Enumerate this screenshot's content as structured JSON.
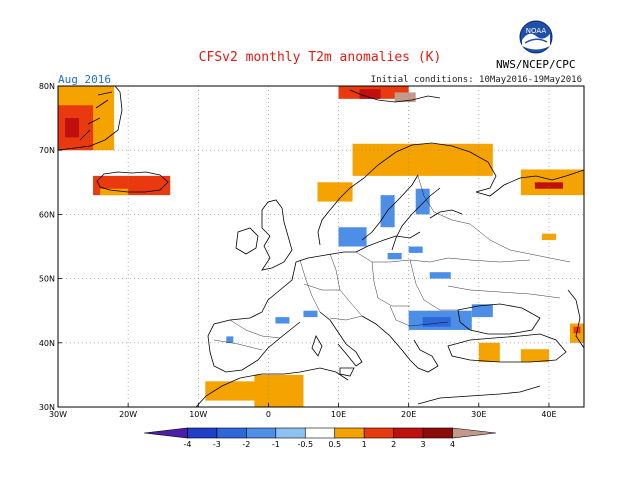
{
  "title": "CFSv2 monthly T2m anomalies (K)",
  "forecast_month": "Aug 2016",
  "initial_conditions": "Initial conditions: 10May2016-19May2016",
  "agency": "NWS/NCEP/CPC",
  "logo_text": "NOAA",
  "map": {
    "projection": "lat-lon",
    "lon_range": [
      -30,
      45
    ],
    "lat_range": [
      30,
      80
    ],
    "lat_ticks": [
      "30N",
      "40N",
      "50N",
      "60N",
      "70N",
      "80N"
    ],
    "lon_ticks": [
      "30W",
      "20W",
      "10W",
      "0",
      "10E",
      "20E",
      "30E",
      "40E"
    ],
    "grid": true
  },
  "colorbar": {
    "labels": [
      "-4",
      "-3",
      "-2",
      "-1",
      "-0.5",
      "0.5",
      "1",
      "2",
      "3",
      "4"
    ],
    "colors": [
      "#4b1fa8",
      "#1f3fc8",
      "#2f66d8",
      "#4d8fe6",
      "#8ec2f2",
      "#ffffff",
      "#f5a300",
      "#e83a0e",
      "#c00f0f",
      "#8c0a0a",
      "#c19a8c"
    ]
  },
  "anomaly_regions": [
    {
      "level": "warm1",
      "lon": [
        -30,
        -22
      ],
      "lat": [
        70,
        80
      ]
    },
    {
      "level": "warm2",
      "lon": [
        -30,
        -25
      ],
      "lat": [
        70,
        77
      ]
    },
    {
      "level": "warm3",
      "lon": [
        -29,
        -27
      ],
      "lat": [
        72,
        75
      ]
    },
    {
      "level": "warm2",
      "lon": [
        -25,
        -14
      ],
      "lat": [
        63,
        66
      ]
    },
    {
      "level": "warm1",
      "lon": [
        -24,
        -20
      ],
      "lat": [
        63,
        64
      ]
    },
    {
      "level": "warm2",
      "lon": [
        10,
        20
      ],
      "lat": [
        78,
        80
      ]
    },
    {
      "level": "warm3",
      "lon": [
        13,
        16
      ],
      "lat": [
        78,
        79.5
      ]
    },
    {
      "level": "warm5",
      "lon": [
        18,
        21
      ],
      "lat": [
        77.5,
        79
      ]
    },
    {
      "level": "warm1",
      "lon": [
        12,
        32
      ],
      "lat": [
        66,
        71
      ]
    },
    {
      "level": "warm1",
      "lon": [
        7,
        12
      ],
      "lat": [
        62,
        65
      ]
    },
    {
      "level": "warm1",
      "lon": [
        36,
        45
      ],
      "lat": [
        63,
        67
      ]
    },
    {
      "level": "warm3",
      "lon": [
        38,
        42
      ],
      "lat": [
        64,
        65
      ]
    },
    {
      "level": "warm1",
      "lon": [
        39,
        41
      ],
      "lat": [
        56,
        57
      ]
    },
    {
      "level": "warm1",
      "lon": [
        -9,
        0
      ],
      "lat": [
        31,
        34
      ]
    },
    {
      "level": "warm1",
      "lon": [
        -2,
        5
      ],
      "lat": [
        30,
        35
      ]
    },
    {
      "level": "warm1",
      "lon": [
        30,
        33
      ],
      "lat": [
        37,
        40
      ]
    },
    {
      "level": "warm1",
      "lon": [
        36,
        40
      ],
      "lat": [
        37,
        39
      ]
    },
    {
      "level": "warm1",
      "lon": [
        43,
        45
      ],
      "lat": [
        40,
        43
      ]
    },
    {
      "level": "warm2",
      "lon": [
        43.5,
        44.5
      ],
      "lat": [
        41.5,
        42.5
      ]
    },
    {
      "level": "cool2",
      "lon": [
        20,
        29
      ],
      "lat": [
        42,
        45
      ]
    },
    {
      "level": "cool3",
      "lon": [
        22,
        26
      ],
      "lat": [
        42.5,
        44
      ]
    },
    {
      "level": "cool2",
      "lon": [
        29,
        32
      ],
      "lat": [
        44,
        46
      ]
    },
    {
      "level": "cool2",
      "lon": [
        16,
        18
      ],
      "lat": [
        58,
        63
      ]
    },
    {
      "level": "cool2",
      "lon": [
        21,
        23
      ],
      "lat": [
        60,
        64
      ]
    },
    {
      "level": "cool2",
      "lon": [
        10,
        14
      ],
      "lat": [
        55,
        58
      ]
    },
    {
      "level": "cool2",
      "lon": [
        1,
        3
      ],
      "lat": [
        43,
        44
      ]
    },
    {
      "level": "cool2",
      "lon": [
        5,
        7
      ],
      "lat": [
        44,
        45
      ]
    },
    {
      "level": "cool2",
      "lon": [
        -6,
        -5
      ],
      "lat": [
        40,
        41
      ]
    },
    {
      "level": "cool2",
      "lon": [
        23,
        26
      ],
      "lat": [
        50,
        51
      ]
    },
    {
      "level": "cool2",
      "lon": [
        17,
        19
      ],
      "lat": [
        53,
        54
      ]
    },
    {
      "level": "cool2",
      "lon": [
        20,
        22
      ],
      "lat": [
        54,
        55
      ]
    }
  ]
}
